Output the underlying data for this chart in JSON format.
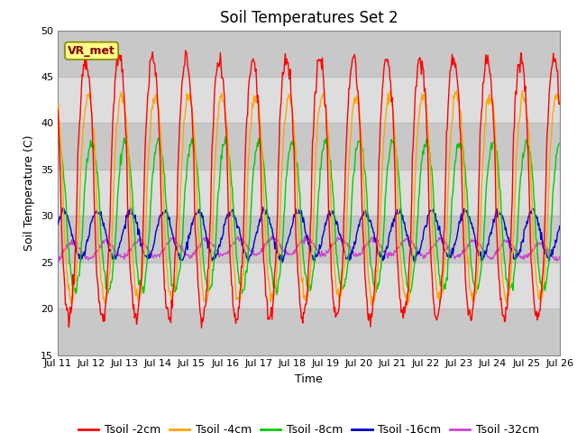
{
  "title": "Soil Temperatures Set 2",
  "xlabel": "Time",
  "ylabel": "Soil Temperature (C)",
  "ylim": [
    15,
    50
  ],
  "xlim": [
    0,
    15
  ],
  "xtick_labels": [
    "Jul 11",
    "Jul 12",
    "Jul 13",
    "Jul 14",
    "Jul 15",
    "Jul 16",
    "Jul 17",
    "Jul 18",
    "Jul 19",
    "Jul 20",
    "Jul 21",
    "Jul 22",
    "Jul 23",
    "Jul 24",
    "Jul 25",
    "Jul 26"
  ],
  "ytick_values": [
    15,
    20,
    25,
    30,
    35,
    40,
    45,
    50
  ],
  "colors": {
    "Tsoil -2cm": "#FF0000",
    "Tsoil -4cm": "#FFA500",
    "Tsoil -8cm": "#00CC00",
    "Tsoil -16cm": "#0000CC",
    "Tsoil -32cm": "#CC44CC"
  },
  "annotation_text": "VR_met",
  "annotation_bg": "#FFFF88",
  "annotation_border": "#888800",
  "plot_bg": "#DDDDDD",
  "grid_color": "#BBBBBB",
  "title_fontsize": 12,
  "label_fontsize": 9,
  "tick_fontsize": 8,
  "legend_fontsize": 9
}
